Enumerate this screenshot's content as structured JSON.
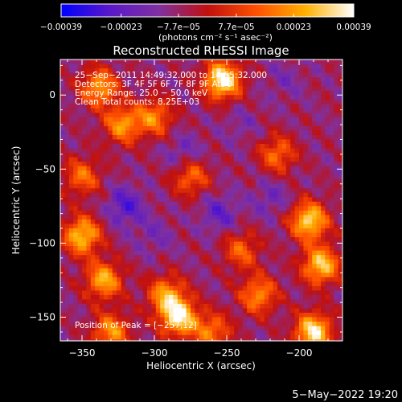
{
  "chart_data": {
    "type": "heatmap",
    "title": "Reconstructed RHESSI Image",
    "xlabel": "Heliocentric X (arcsec)",
    "ylabel": "Heliocentric Y (arcsec)",
    "xlim": [
      -365,
      -170
    ],
    "ylim": [
      -166,
      24
    ],
    "x_ticks": [
      -350,
      -300,
      -250,
      -200
    ],
    "y_ticks": [
      0,
      -50,
      -100,
      -150
    ],
    "x_tick_labels": [
      "−350",
      "−300",
      "−250",
      "−200"
    ],
    "y_tick_labels": [
      "0",
      "−50",
      "−100",
      "−150"
    ],
    "colorbar": {
      "range": [
        -0.00039,
        0.00039
      ],
      "ticks": [
        -0.00039,
        -0.00023,
        -7.7e-05,
        7.7e-05,
        0.00023,
        0.00039
      ],
      "tick_labels": [
        "−0.00039",
        "−0.00023",
        "−7.7e−05",
        "7.7e−05",
        "0.00023",
        "0.00039"
      ],
      "units": "(photons cm⁻² s⁻¹ asec⁻²)",
      "colors": [
        "#0000ff",
        "#5a18c8",
        "#8030a0",
        "#c01010",
        "#ff5000",
        "#ffb000",
        "#ffffff"
      ]
    },
    "annotations": [
      "25−Sep−2011 14:49:32.000 to 14:55:32.000",
      "Detectors: 3F 4F 5F 6F 7F 8F 9F Att 0",
      "Energy Range: 25.0 − 50.0 keV",
      "Clean     Total counts: 8.25E+03"
    ],
    "peak": "Position of Peak = [−257,12]",
    "hotspots": [
      {
        "x": -253,
        "y": 10,
        "v": 0.00039
      },
      {
        "x": -283,
        "y": -150,
        "v": 0.00035
      },
      {
        "x": -190,
        "y": -160,
        "v": 0.00036
      },
      {
        "x": -193,
        "y": -85,
        "v": 0.00033
      },
      {
        "x": -185,
        "y": -115,
        "v": 0.00031
      },
      {
        "x": -338,
        "y": 5,
        "v": 0.00024
      },
      {
        "x": -322,
        "y": -20,
        "v": 0.00022
      },
      {
        "x": -350,
        "y": -95,
        "v": 0.0003
      },
      {
        "x": -335,
        "y": -125,
        "v": 0.00026
      },
      {
        "x": -292,
        "y": -135,
        "v": 0.00022
      },
      {
        "x": -228,
        "y": -135,
        "v": 0.00021
      },
      {
        "x": -300,
        "y": -15,
        "v": 0.00019
      },
      {
        "x": -275,
        "y": -55,
        "v": 0.00017
      },
      {
        "x": -350,
        "y": -55,
        "v": 0.00016
      },
      {
        "x": -215,
        "y": -40,
        "v": 0.00016
      },
      {
        "x": -240,
        "y": -105,
        "v": 0.00014
      },
      {
        "x": -260,
        "y": -160,
        "v": 0.00018
      },
      {
        "x": -330,
        "y": -160,
        "v": 0.00022
      }
    ],
    "coldspots": [
      {
        "x": -320,
        "y": -75,
        "v": -0.00026
      },
      {
        "x": -255,
        "y": -80,
        "v": -0.00022
      },
      {
        "x": -280,
        "y": -40,
        "v": -0.0002
      },
      {
        "x": -220,
        "y": -70,
        "v": -0.00018
      },
      {
        "x": -300,
        "y": -95,
        "v": -0.00016
      },
      {
        "x": -240,
        "y": -20,
        "v": -0.00014
      },
      {
        "x": -210,
        "y": 10,
        "v": -0.00015
      }
    ]
  },
  "footer": {
    "timestamp": "5−May−2022 19:20"
  }
}
